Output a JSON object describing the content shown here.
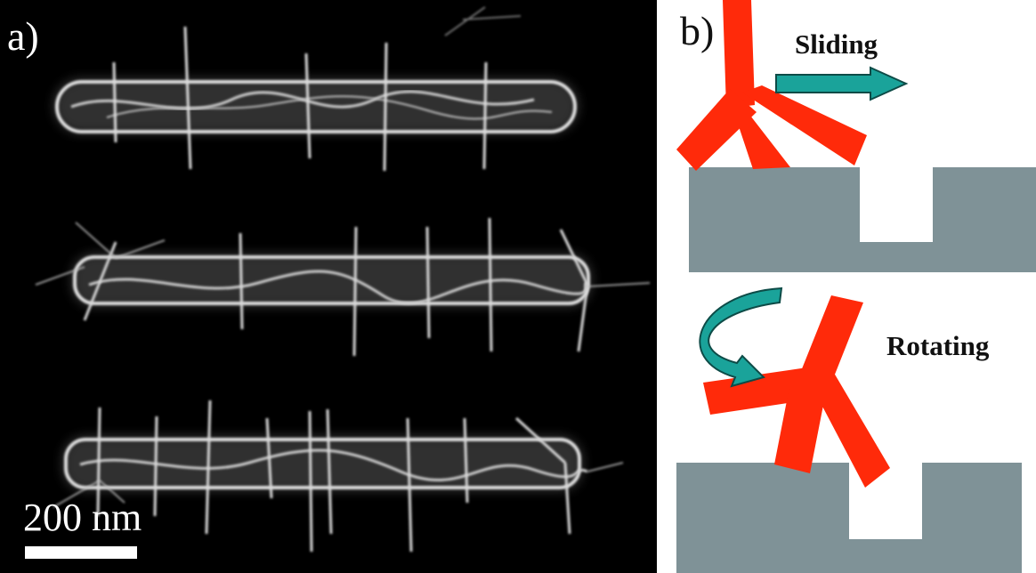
{
  "figure": {
    "panel_a": {
      "label": "a)",
      "scale_bar_text": "200 nm",
      "colors": {
        "background": "#000000",
        "structure": "#d8d8d8"
      }
    },
    "panel_b": {
      "label": "b)",
      "top_diagram": {
        "caption": "Sliding"
      },
      "bottom_diagram": {
        "caption": "Rotating"
      },
      "colors": {
        "particle": "#ff2a0a",
        "substrate": "#7f9297",
        "arrow": "#1aa39a"
      }
    }
  }
}
